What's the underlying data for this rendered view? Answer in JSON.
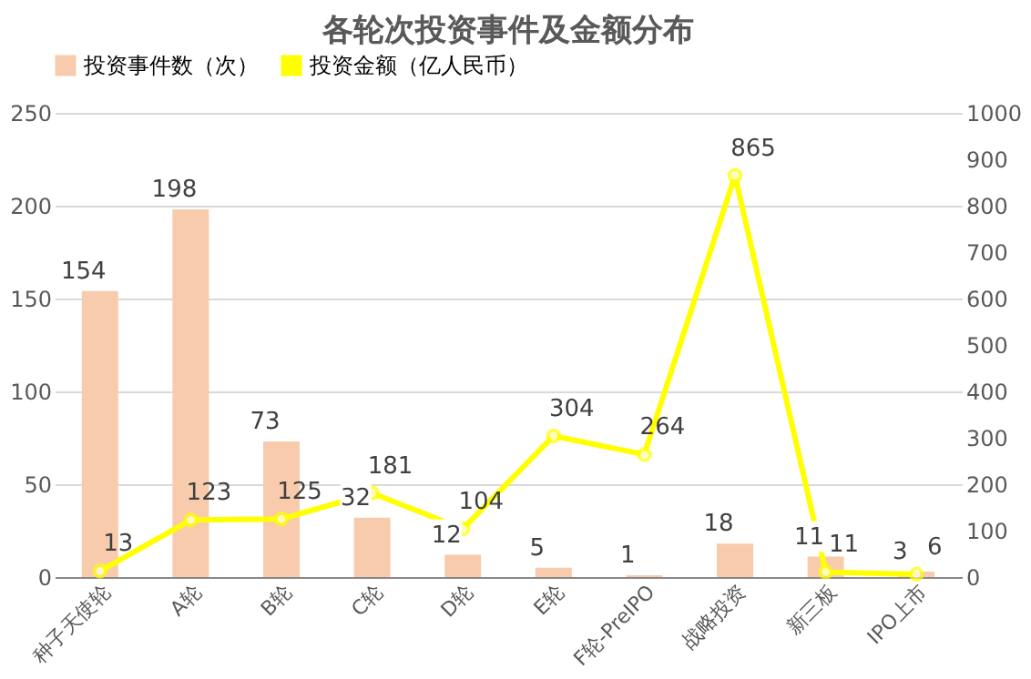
{
  "chart_data": {
    "type": "bar",
    "title": "各轮次投资事件及金额分布",
    "categories": [
      "种子天使轮",
      "A轮",
      "B轮",
      "C轮",
      "D轮",
      "E轮",
      "F轮-PreIPO",
      "战略投资",
      "新三板",
      "IPO上市"
    ],
    "series": [
      {
        "name": "投资事件数（次）",
        "color": "#f8cbad",
        "values": [
          154,
          198,
          73,
          32,
          12,
          5,
          1,
          18,
          11,
          3
        ]
      },
      {
        "name": "投资金额（亿人民币）",
        "type": "line",
        "axis": "y2",
        "color": "#ffff00",
        "marker": "circle",
        "values": [
          13,
          123,
          125,
          181,
          104,
          304,
          264,
          865,
          11,
          6
        ]
      }
    ],
    "ylim": [
      0,
      250
    ],
    "yticks": [
      0,
      50,
      100,
      150,
      200,
      250
    ],
    "y2lim": [
      0,
      1000
    ],
    "y2ticks": [
      0,
      100,
      200,
      300,
      400,
      500,
      600,
      700,
      800,
      900,
      1000
    ],
    "grid": "y",
    "legend": "top",
    "data_labels": true
  }
}
